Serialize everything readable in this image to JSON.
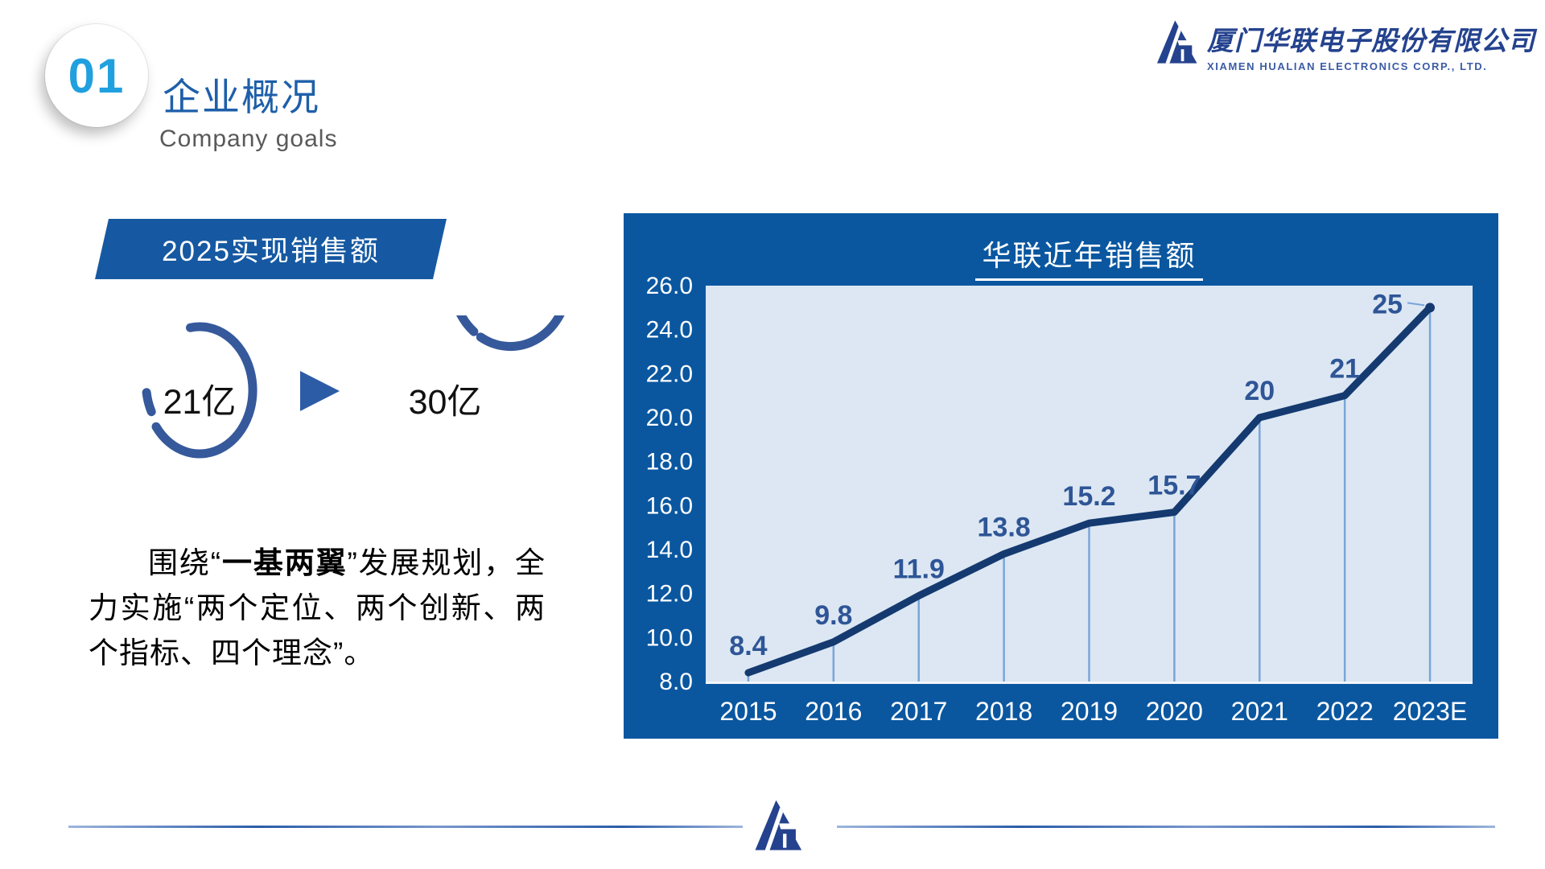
{
  "header": {
    "section_number": "01",
    "title": "企业概况",
    "subtitle": "Company goals",
    "logo": {
      "company_cn": "厦门华联电子股份有限公司",
      "company_en": "XIAMEN HUALIAN ELECTRONICS CORP., LTD.",
      "mark_icon": "hl-triangle-monogram"
    }
  },
  "goal": {
    "banner_label": "2025实现销售额",
    "current_value": "21亿",
    "target_value": "30亿",
    "arrow_icon": "right-arrow"
  },
  "paragraph": {
    "before": "围绕“",
    "bold": "一基两翼",
    "after": "”发展规划，全力实施“两个定位、两个创新、两个指标、四个理念”。"
  },
  "chart_data": {
    "type": "line",
    "title": "华联近年销售额",
    "categories": [
      "2015",
      "2016",
      "2017",
      "2018",
      "2019",
      "2020",
      "2021",
      "2022",
      "2023E"
    ],
    "values": [
      8.4,
      9.8,
      11.9,
      13.8,
      15.2,
      15.7,
      20,
      21,
      25
    ],
    "labels": [
      "8.4",
      "9.8",
      "11.9",
      "13.8",
      "15.2",
      "15.7",
      "20",
      "21",
      "25"
    ],
    "series_name": "销售额",
    "xlabel": "",
    "ylabel": "",
    "ylim": [
      8.0,
      26.0
    ],
    "ytick_step": 2.0,
    "yticks": [
      "26.0",
      "24.0",
      "22.0",
      "20.0",
      "18.0",
      "16.0",
      "14.0",
      "12.0",
      "10.0",
      "8.0"
    ],
    "grid": false,
    "legend": "none",
    "drop_lines": true,
    "end_point_dot": true
  },
  "colors": {
    "panel-blue": "#0a57a0",
    "banner-blue": "#1659a2",
    "title-blue": "#1e5fa9",
    "num-cyan": "#21a0df",
    "arc-blue": "#36599b",
    "arrow-blue": "#2d5ca7",
    "line-navy": "#143a70",
    "dlabel": "#2e5596",
    "drop": "#79a5da",
    "plotbg": "#dce7f3",
    "logo-navy": "#24428e"
  }
}
